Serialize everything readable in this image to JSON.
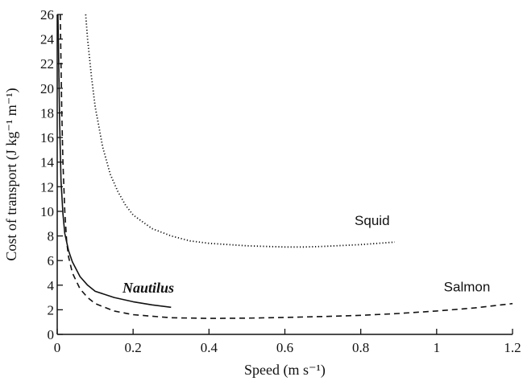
{
  "chart_data": {
    "type": "line",
    "title": "",
    "xlabel": "Speed (m s⁻¹)",
    "ylabel": "Cost of transport (J kg⁻¹ m⁻¹)",
    "xlim": [
      0,
      1.2
    ],
    "ylim": [
      0,
      26
    ],
    "xticks": [
      0,
      0.2,
      0.4,
      0.6,
      0.8,
      1,
      1.2
    ],
    "xtick_labels": [
      "0",
      "0.2",
      "0.4",
      "0.6",
      "0.8",
      "1",
      "1.2"
    ],
    "yticks": [
      0,
      2,
      4,
      6,
      8,
      10,
      12,
      14,
      16,
      18,
      20,
      22,
      24,
      26
    ],
    "ytick_labels": [
      "0",
      "2",
      "4",
      "6",
      "8",
      "10",
      "12",
      "14",
      "16",
      "18",
      "20",
      "22",
      "24",
      "26"
    ],
    "grid": false,
    "series": [
      {
        "name": "Squid",
        "style": "dotted",
        "color": "#111111",
        "points": [
          [
            0.075,
            26
          ],
          [
            0.08,
            24
          ],
          [
            0.09,
            21
          ],
          [
            0.1,
            18.5
          ],
          [
            0.12,
            15.2
          ],
          [
            0.14,
            13
          ],
          [
            0.16,
            11.6
          ],
          [
            0.18,
            10.5
          ],
          [
            0.2,
            9.7
          ],
          [
            0.25,
            8.6
          ],
          [
            0.3,
            8
          ],
          [
            0.35,
            7.6
          ],
          [
            0.4,
            7.4
          ],
          [
            0.5,
            7.2
          ],
          [
            0.6,
            7.1
          ],
          [
            0.65,
            7.1
          ],
          [
            0.7,
            7.15
          ],
          [
            0.8,
            7.3
          ],
          [
            0.89,
            7.5
          ]
        ]
      },
      {
        "name": "Nautilus",
        "style": "solid",
        "color": "#111111",
        "points": [
          [
            0.002,
            26
          ],
          [
            0.004,
            22
          ],
          [
            0.006,
            18
          ],
          [
            0.008,
            15
          ],
          [
            0.01,
            12.5
          ],
          [
            0.015,
            9.8
          ],
          [
            0.02,
            8.2
          ],
          [
            0.03,
            6.8
          ],
          [
            0.04,
            5.9
          ],
          [
            0.06,
            4.7
          ],
          [
            0.08,
            4
          ],
          [
            0.1,
            3.5
          ],
          [
            0.15,
            3
          ],
          [
            0.2,
            2.65
          ],
          [
            0.25,
            2.4
          ],
          [
            0.3,
            2.2
          ]
        ]
      },
      {
        "name": "Salmon",
        "style": "dashed",
        "color": "#111111",
        "points": [
          [
            0.008,
            26
          ],
          [
            0.01,
            22
          ],
          [
            0.012,
            18
          ],
          [
            0.015,
            14
          ],
          [
            0.02,
            10
          ],
          [
            0.025,
            7.5
          ],
          [
            0.03,
            6.3
          ],
          [
            0.04,
            5
          ],
          [
            0.06,
            3.7
          ],
          [
            0.08,
            3
          ],
          [
            0.1,
            2.5
          ],
          [
            0.15,
            1.9
          ],
          [
            0.2,
            1.6
          ],
          [
            0.3,
            1.35
          ],
          [
            0.4,
            1.3
          ],
          [
            0.5,
            1.32
          ],
          [
            0.6,
            1.38
          ],
          [
            0.7,
            1.45
          ],
          [
            0.8,
            1.55
          ],
          [
            0.9,
            1.7
          ],
          [
            1,
            1.9
          ],
          [
            1.1,
            2.15
          ],
          [
            1.2,
            2.5
          ]
        ]
      }
    ],
    "annotations": [
      {
        "text": "Squid",
        "x": 0.83,
        "y": 8.9,
        "italic": false
      },
      {
        "text": "Nautilus",
        "x": 0.24,
        "y": 3.4,
        "italic": true
      },
      {
        "text": "Salmon",
        "x": 1.08,
        "y": 3.5,
        "italic": false
      }
    ]
  }
}
